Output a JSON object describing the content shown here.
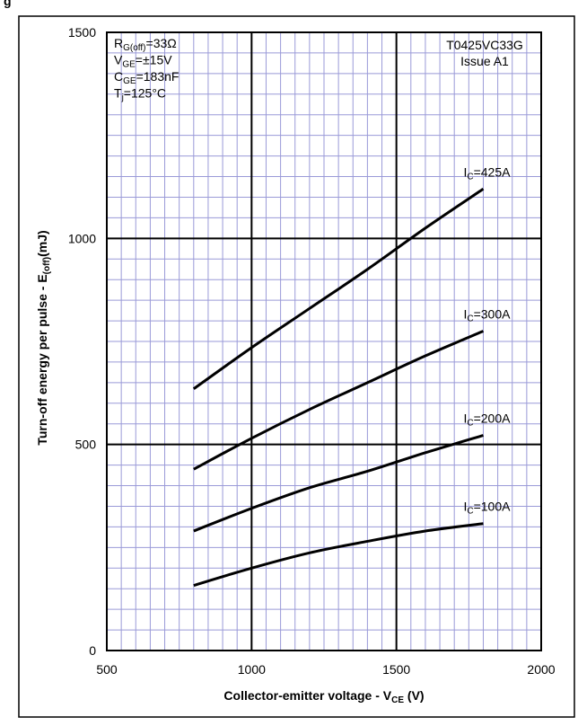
{
  "header": {
    "partial_heading": "g"
  },
  "chart_data": {
    "type": "line",
    "title": "",
    "xlabel": {
      "main": "Collector-emitter  voltage - V",
      "sub": "CE",
      "tail": " (V)"
    },
    "ylabel": {
      "main": "Turn-off energy per pulse - E",
      "sub": "(off)",
      "tail": "(mJ)"
    },
    "xlim": [
      500,
      2000
    ],
    "ylim": [
      0,
      1500
    ],
    "x_ticks": [
      "500",
      "1000",
      "1500",
      "2000"
    ],
    "y_ticks": [
      "0",
      "500",
      "1000",
      "1500"
    ],
    "x_tick_values": [
      500,
      1000,
      1500,
      2000
    ],
    "y_tick_values": [
      0,
      500,
      1000,
      1500
    ],
    "grid": true,
    "conditions": [
      {
        "main": "R",
        "sub": "G(off)",
        "tail": "=33Ω"
      },
      {
        "main": "V",
        "sub": "GE",
        "tail": "=±15V"
      },
      {
        "main": "C",
        "sub": "GE",
        "tail": "=183nF"
      },
      {
        "main": "T",
        "sub": "j",
        "tail": "=125°C"
      }
    ],
    "part_info": [
      "T0425VC33G",
      "Issue A1"
    ],
    "series": [
      {
        "name": {
          "main": "I",
          "sub": "C",
          "tail": "=425A"
        },
        "x": [
          800,
          1000,
          1200,
          1400,
          1600,
          1800
        ],
        "y": [
          635,
          735,
          830,
          925,
          1025,
          1120
        ]
      },
      {
        "name": {
          "main": "I",
          "sub": "C",
          "tail": "=300A"
        },
        "x": [
          800,
          1000,
          1200,
          1400,
          1600,
          1800
        ],
        "y": [
          440,
          515,
          585,
          650,
          715,
          775
        ]
      },
      {
        "name": {
          "main": "I",
          "sub": "C",
          "tail": "=200A"
        },
        "x": [
          800,
          1000,
          1200,
          1400,
          1600,
          1800
        ],
        "y": [
          290,
          345,
          395,
          435,
          480,
          522
        ]
      },
      {
        "name": {
          "main": "I",
          "sub": "C",
          "tail": "=100A"
        },
        "x": [
          800,
          1000,
          1200,
          1400,
          1600,
          1800
        ],
        "y": [
          158,
          200,
          237,
          265,
          290,
          308
        ]
      }
    ]
  }
}
